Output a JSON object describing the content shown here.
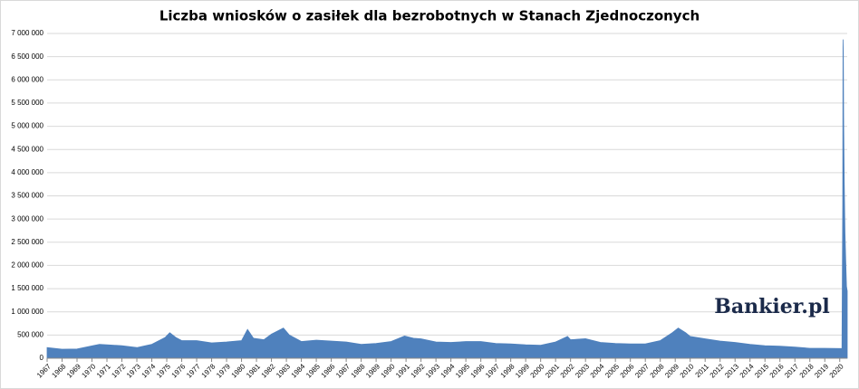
{
  "chart_data": {
    "type": "area",
    "title": "Liczba wniosków o zasiłek dla bezrobotnych w Stanach Zjednoczonych",
    "watermark": "Bankier.pl",
    "color": "#4f81bd",
    "grid": true,
    "x": [
      1967,
      1968,
      1969,
      1970.5,
      1971,
      1972,
      1973,
      1974,
      1974.9,
      1975.2,
      1975.6,
      1976,
      1977,
      1978,
      1979,
      1980,
      1980.4,
      1980.8,
      1981.5,
      1982,
      1982.8,
      1983.2,
      1984,
      1985,
      1986,
      1987,
      1988,
      1989,
      1990,
      1990.9,
      1991.5,
      1992,
      1993,
      1994,
      1995,
      1996,
      1997,
      1998,
      1999,
      2000,
      2001,
      2001.8,
      2002,
      2003,
      2004,
      2005,
      2006,
      2007,
      2008,
      2008.8,
      2009.2,
      2009.7,
      2010,
      2011,
      2012,
      2013,
      2014,
      2015,
      2016,
      2017,
      2018,
      2019,
      2020.15,
      2020.2,
      2020.22,
      2020.24,
      2020.26,
      2020.3,
      2020.35,
      2020.4,
      2020.45,
      2020.5
    ],
    "values": [
      230000,
      195000,
      200000,
      300000,
      290000,
      270000,
      230000,
      300000,
      450000,
      550000,
      450000,
      380000,
      380000,
      330000,
      350000,
      380000,
      620000,
      430000,
      400000,
      520000,
      650000,
      500000,
      360000,
      390000,
      370000,
      350000,
      300000,
      320000,
      360000,
      480000,
      430000,
      420000,
      350000,
      340000,
      360000,
      360000,
      320000,
      310000,
      290000,
      280000,
      350000,
      470000,
      400000,
      420000,
      340000,
      320000,
      310000,
      310000,
      380000,
      550000,
      650000,
      550000,
      470000,
      420000,
      370000,
      340000,
      300000,
      270000,
      260000,
      240000,
      215000,
      215000,
      210000,
      3300000,
      6870000,
      6600000,
      5200000,
      3800000,
      2700000,
      2100000,
      1550000,
      1450000
    ],
    "xlim": [
      1967,
      2020.5
    ],
    "xticks": [
      1967,
      1968,
      1969,
      1970,
      1971,
      1972,
      1973,
      1974,
      1975,
      1976,
      1977,
      1978,
      1979,
      1980,
      1981,
      1982,
      1983,
      1984,
      1985,
      1986,
      1987,
      1988,
      1989,
      1990,
      1991,
      1992,
      1993,
      1994,
      1995,
      1996,
      1997,
      1998,
      1999,
      2000,
      2001,
      2002,
      2003,
      2004,
      2005,
      2006,
      2007,
      2008,
      2009,
      2010,
      2011,
      2012,
      2013,
      2014,
      2015,
      2016,
      2017,
      2018,
      2019,
      2020
    ],
    "ylim": [
      0,
      7000000
    ],
    "yticks": [
      0,
      {
        "value": 500000,
        "label": "500 000"
      },
      {
        "value": 1000000,
        "label": "1 000 000"
      },
      {
        "value": 1500000,
        "label": "1 500 000"
      },
      {
        "value": 2000000,
        "label": "2 000 000"
      },
      {
        "value": 2500000,
        "label": "2 500 000"
      },
      {
        "value": 3000000,
        "label": "3 000 000"
      },
      {
        "value": 3500000,
        "label": "3 500 000"
      },
      {
        "value": 4000000,
        "label": "4 000 000"
      },
      {
        "value": 4500000,
        "label": "4 500 000"
      },
      {
        "value": 5000000,
        "label": "5 000 000"
      },
      {
        "value": 5500000,
        "label": "5 500 000"
      },
      {
        "value": 6000000,
        "label": "6 000 000"
      },
      {
        "value": 6500000,
        "label": "6 500 000"
      },
      {
        "value": 7000000,
        "label": "7 000 000"
      }
    ]
  }
}
